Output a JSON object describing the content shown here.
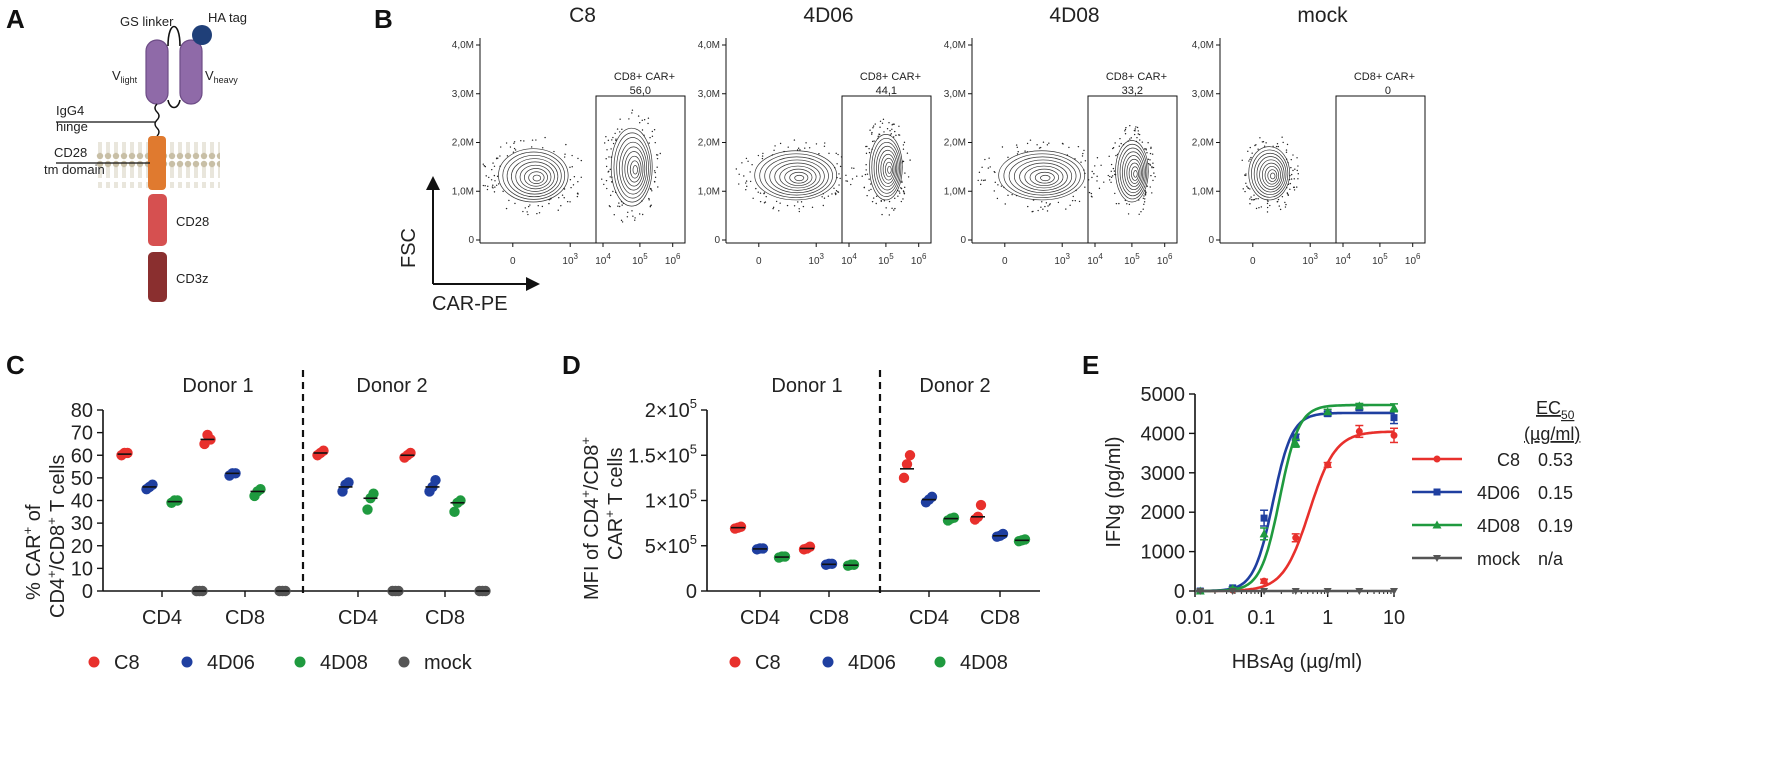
{
  "panels": {
    "A": {
      "letter": "A",
      "labels": {
        "gs_linker": "GS linker",
        "ha_tag": "HA tag",
        "v_light_main": "V",
        "v_light_sub": "light",
        "v_heavy_main": "V",
        "v_heavy_sub": "heavy",
        "igg4_line1": "IgG4",
        "igg4_line2": "hinge",
        "cd28tm_line1": "CD28",
        "cd28tm_line2": "tm domain",
        "cd28": "CD28",
        "cd3z": "CD3z"
      },
      "colors": {
        "vdomain": "#8f6aa8",
        "ha": "#1f3f78",
        "tm": "#e07a2f",
        "cd28": "#d65050",
        "cd3z": "#8a2f2f",
        "membrane": "#c8bfa6"
      }
    },
    "B": {
      "letter": "B",
      "y_axis_label": "FSC",
      "x_axis_label": "CAR-PE",
      "y_ticks": [
        "4,0M",
        "3,0M",
        "2,0M",
        "1,0M",
        "0"
      ],
      "x_ticks": [
        "0",
        "10",
        "10",
        "10",
        "10"
      ],
      "x_tick_exps": [
        "",
        "3",
        "4",
        "5",
        "6"
      ],
      "plots": [
        {
          "title": "C8",
          "gate_label": "CD8+ CAR+",
          "gate_value": "56,0"
        },
        {
          "title": "4D06",
          "gate_label": "CD8+ CAR+",
          "gate_value": "44,1"
        },
        {
          "title": "4D08",
          "gate_label": "CD8+ CAR+",
          "gate_value": "33,2"
        },
        {
          "title": "mock",
          "gate_label": "CD8+ CAR+",
          "gate_value": "0"
        }
      ]
    },
    "C": {
      "letter": "C",
      "y_label_line1": "% CAR",
      "y_label_line2": "CD4",
      "y_label_sup1": "+",
      "y_label_of": " of",
      "y_label_mid": "/CD8",
      "y_label_end": " T cells",
      "donors": [
        "Donor 1",
        "Donor 2"
      ],
      "categories": [
        "CD4",
        "CD8",
        "CD4",
        "CD8"
      ],
      "legend": [
        "C8",
        "4D06",
        "4D08",
        "mock"
      ]
    },
    "D": {
      "letter": "D",
      "y_label_line1": "MFI of CD4",
      "y_label_line1b": "/CD8",
      "y_label_line2": "CAR",
      "y_label_line2b": " T cells",
      "y_label_sup": "+",
      "donors": [
        "Donor 1",
        "Donor 2"
      ],
      "categories": [
        "CD4",
        "CD8",
        "CD4",
        "CD8"
      ],
      "legend": [
        "C8",
        "4D06",
        "4D08"
      ]
    },
    "E": {
      "letter": "E",
      "ec50_header": "EC",
      "ec50_sub": "50",
      "ec50_unit": "(µg/ml)",
      "legend": [
        {
          "name": "C8",
          "ec50": "0.53"
        },
        {
          "name": "4D06",
          "ec50": "0.15"
        },
        {
          "name": "4D08",
          "ec50": "0.19"
        },
        {
          "name": "mock",
          "ec50": "n/a"
        }
      ]
    }
  },
  "series_colors": {
    "C8": "#e8302c",
    "4D06": "#1f3fa0",
    "4D08": "#1f9a3f",
    "mock": "#555555"
  },
  "chart_data": [
    {
      "type": "scatter",
      "title": "Panel C",
      "ylabel": "% CAR+ of CD4+/CD8+ T cells",
      "ylim": [
        0,
        80
      ],
      "yticks": [
        0,
        10,
        20,
        30,
        40,
        50,
        60,
        70,
        80
      ],
      "categories": [
        "Donor 1 CD4",
        "Donor 1 CD8",
        "Donor 2 CD4",
        "Donor 2 CD8"
      ],
      "series": [
        {
          "name": "C8",
          "values": [
            [
              60,
              61,
              61
            ],
            [
              65,
              69,
              67
            ],
            [
              60,
              61,
              62
            ],
            [
              59,
              60,
              61
            ]
          ],
          "means": [
            60.5,
            67,
            61,
            60
          ]
        },
        {
          "name": "4D06",
          "values": [
            [
              45,
              46,
              47
            ],
            [
              51,
              52,
              52
            ],
            [
              44,
              47,
              48
            ],
            [
              44,
              46,
              49
            ]
          ],
          "means": [
            46,
            52,
            46,
            46
          ]
        },
        {
          "name": "4D08",
          "values": [
            [
              39,
              40,
              40
            ],
            [
              42,
              44,
              45
            ],
            [
              36,
              41,
              43
            ],
            [
              35,
              39,
              40
            ]
          ],
          "means": [
            39.5,
            44,
            41,
            39
          ]
        },
        {
          "name": "mock",
          "values": [
            [
              0,
              0,
              0
            ],
            [
              0,
              0,
              0
            ],
            [
              0,
              0,
              0
            ],
            [
              0,
              0,
              0
            ]
          ],
          "means": [
            0,
            0,
            0,
            0
          ]
        }
      ]
    },
    {
      "type": "scatter",
      "title": "Panel D",
      "ylabel": "MFI of CD4+/CD8+ CAR+ T cells",
      "ylim": [
        0,
        200000
      ],
      "yticks": [
        0,
        50000,
        100000,
        150000,
        200000
      ],
      "ytick_labels": [
        "0",
        "5×10",
        "1×10",
        "1.5×10",
        "2×10"
      ],
      "ytick_exp": "5",
      "categories": [
        "Donor 1 CD4",
        "Donor 1 CD8",
        "Donor 2 CD4",
        "Donor 2 CD8"
      ],
      "series": [
        {
          "name": "C8",
          "values": [
            [
              69000,
              70000,
              71000
            ],
            [
              46000,
              47000,
              49000
            ],
            [
              125000,
              140000,
              150000
            ],
            [
              79000,
              82000,
              95000
            ]
          ],
          "means": [
            70000,
            47000,
            135000,
            82000
          ]
        },
        {
          "name": "4D06",
          "values": [
            [
              46000,
              47000,
              47000
            ],
            [
              29000,
              30000,
              30000
            ],
            [
              98000,
              101000,
              104000
            ],
            [
              60000,
              61000,
              63000
            ]
          ],
          "means": [
            46500,
            29500,
            101000,
            61000
          ]
        },
        {
          "name": "4D08",
          "values": [
            [
              37000,
              38000,
              38000
            ],
            [
              28000,
              29000,
              29000
            ],
            [
              78000,
              80000,
              81000
            ],
            [
              55000,
              56000,
              57000
            ]
          ],
          "means": [
            37500,
            28500,
            80000,
            56000
          ]
        }
      ]
    },
    {
      "type": "line",
      "title": "Panel E",
      "xlabel": "HBsAg (µg/ml)",
      "ylabel": "IFNg  (pg/ml)",
      "xscale": "log",
      "xlim": [
        0.01,
        10
      ],
      "ylim": [
        0,
        5000
      ],
      "xticks": [
        0.01,
        0.1,
        1,
        10
      ],
      "xtick_labels": [
        "0.01",
        "0.1",
        "1",
        "10"
      ],
      "yticks": [
        0,
        1000,
        2000,
        3000,
        4000,
        5000
      ],
      "series": [
        {
          "name": "C8",
          "x": [
            0.012,
            0.037,
            0.11,
            0.33,
            1,
            3,
            10
          ],
          "y": [
            0,
            20,
            250,
            1350,
            3200,
            4050,
            3950
          ],
          "err": [
            0,
            20,
            50,
            100,
            60,
            150,
            180
          ],
          "fit": {
            "bottom": 0,
            "top": 4050,
            "ec50": 0.53,
            "hill": 2.2
          }
        },
        {
          "name": "4D06",
          "x": [
            0.012,
            0.037,
            0.11,
            0.33,
            1,
            3,
            10
          ],
          "y": [
            0,
            80,
            1850,
            3900,
            4500,
            4650,
            4400
          ],
          "err": [
            0,
            30,
            200,
            80,
            60,
            60,
            150
          ],
          "fit": {
            "bottom": 0,
            "top": 4520,
            "ec50": 0.15,
            "hill": 3.0
          }
        },
        {
          "name": "4D08",
          "x": [
            0.012,
            0.037,
            0.11,
            0.33,
            1,
            3,
            10
          ],
          "y": [
            0,
            60,
            1450,
            3750,
            4550,
            4700,
            4650
          ],
          "err": [
            0,
            30,
            150,
            100,
            60,
            60,
            100
          ],
          "fit": {
            "bottom": 0,
            "top": 4720,
            "ec50": 0.19,
            "hill": 3.0
          }
        },
        {
          "name": "mock",
          "x": [
            0.012,
            0.037,
            0.11,
            0.33,
            1,
            3,
            10
          ],
          "y": [
            0,
            0,
            0,
            0,
            0,
            0,
            0
          ],
          "err": [
            0,
            0,
            0,
            0,
            0,
            0,
            0
          ]
        }
      ]
    }
  ]
}
